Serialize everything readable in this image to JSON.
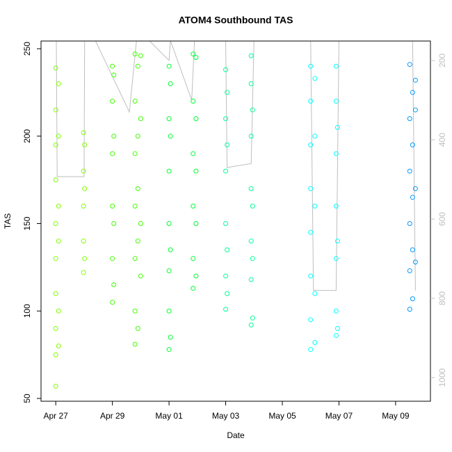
{
  "chart_data": {
    "type": "scatter",
    "title": "ATOM4 Southbound TAS",
    "x_label": "Date",
    "y_label": "TAS",
    "xlim": [
      -0.52,
      13.23
    ],
    "xticks": [
      {
        "value": 0,
        "label": "Apr 27"
      },
      {
        "value": 2,
        "label": "Apr 29"
      },
      {
        "value": 4,
        "label": "May 01"
      },
      {
        "value": 6,
        "label": "May 03"
      },
      {
        "value": 8,
        "label": "May 05"
      },
      {
        "value": 10,
        "label": "May 07"
      },
      {
        "value": 12,
        "label": "May 09"
      }
    ],
    "ylim": [
      48.4,
      254.4
    ],
    "yticks": [
      50,
      100,
      150,
      200,
      250
    ],
    "y2lim": [
      1059.6,
      150.9
    ],
    "y2ticks": [
      200,
      400,
      600,
      800,
      1000
    ],
    "series": [
      {
        "color": "#80ff00",
        "x": [
          0,
          0,
          0,
          0,
          0,
          0,
          0,
          0,
          0,
          0,
          0.1,
          0.1,
          0.1,
          0.1,
          0.1,
          0.1,
          0.98,
          0.98,
          0.98,
          0.98,
          0.98,
          1.02,
          1.02,
          1.02
        ],
        "values": [
          57,
          75,
          90,
          110,
          130,
          150,
          175,
          195,
          215,
          239,
          80,
          100,
          140,
          160,
          200,
          230,
          122,
          140,
          160,
          180,
          202,
          130,
          170,
          195
        ]
      },
      {
        "color": "#40ff00",
        "x": [
          2,
          2,
          2,
          2,
          2,
          2,
          2.05,
          2.05,
          2.05,
          2.05,
          2.8,
          2.8,
          2.8,
          2.8,
          2.8,
          2.8,
          2.8,
          2.9,
          2.9,
          2.9,
          2.9,
          2.9,
          3,
          3,
          3,
          3
        ],
        "values": [
          105,
          130,
          160,
          190,
          220,
          240,
          115,
          150,
          200,
          235,
          81,
          100,
          130,
          160,
          190,
          220,
          247,
          90,
          140,
          170,
          200,
          240,
          120,
          150,
          210,
          246
        ]
      },
      {
        "color": "#00ff33",
        "x": [
          4,
          4,
          4,
          4,
          4,
          4,
          4,
          4.05,
          4.05,
          4.05,
          4.05,
          4.85,
          4.85,
          4.85,
          4.85,
          4.85,
          4.85,
          4.95,
          4.95,
          4.95,
          4.95,
          4.95
        ],
        "values": [
          78,
          100,
          123,
          150,
          180,
          210,
          240,
          85,
          135,
          200,
          230,
          113,
          130,
          160,
          190,
          220,
          247,
          120,
          150,
          180,
          210,
          245
        ]
      },
      {
        "color": "#00ff99",
        "x": [
          6,
          6,
          6,
          6,
          6,
          6,
          6.05,
          6.05,
          6.05,
          6.05,
          6.9,
          6.9,
          6.9,
          6.9,
          6.9,
          6.9,
          6.9,
          6.95,
          6.95,
          6.95,
          6.95
        ],
        "values": [
          101,
          120,
          150,
          180,
          210,
          238,
          110,
          135,
          195,
          225,
          92,
          118,
          140,
          170,
          200,
          230,
          246,
          96,
          130,
          160,
          215
        ]
      },
      {
        "color": "#00ffff",
        "x": [
          9,
          9,
          9,
          9,
          9,
          9,
          9,
          9,
          9.15,
          9.15,
          9.15,
          9.15,
          9.15,
          9.9,
          9.9,
          9.9,
          9.9,
          9.9,
          9.9,
          9.9,
          9.95,
          9.95,
          9.95
        ],
        "values": [
          78,
          95,
          120,
          145,
          170,
          195,
          220,
          240,
          82,
          110,
          160,
          200,
          233,
          86,
          100,
          130,
          160,
          190,
          220,
          240,
          90,
          140,
          205
        ]
      },
      {
        "color": "#0099ff",
        "x": [
          12.5,
          12.5,
          12.5,
          12.5,
          12.5,
          12.5,
          12.6,
          12.6,
          12.6,
          12.6,
          12.6,
          12.7,
          12.7,
          12.7,
          12.7
        ],
        "values": [
          101,
          123,
          150,
          180,
          210,
          241,
          107,
          135,
          165,
          195,
          225,
          128,
          170,
          215,
          232
        ]
      },
      {
        "color": "#bebebe",
        "axis": "y2",
        "line": true,
        "x": [
          0.02,
          0.05,
          1,
          1.02,
          1.4,
          2.6,
          2.85,
          2.9,
          3.3,
          4,
          4.05,
          4.8,
          4.9,
          6,
          6.05,
          6.9,
          7,
          9,
          9.1,
          9.2,
          9.9,
          10,
          12.6,
          12.7
        ],
        "values": [
          150,
          493,
          493,
          150,
          150,
          330,
          150,
          150,
          150,
          200,
          150,
          300,
          150,
          150,
          470,
          460,
          150,
          150,
          780,
          780,
          780,
          150,
          150,
          780
        ]
      }
    ]
  }
}
